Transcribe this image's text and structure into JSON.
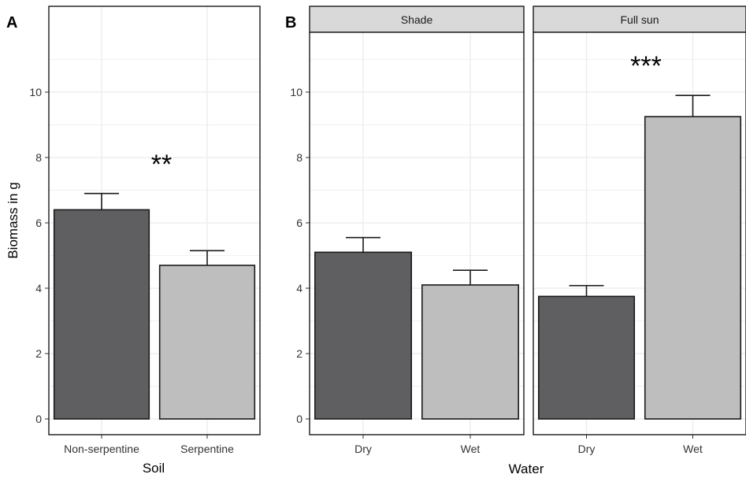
{
  "colors": {
    "dark_bar": "#5f5f61",
    "light_bar": "#bebebe",
    "strip_bg": "#d9d9d9",
    "grid": "#ebebeb"
  },
  "chart_data": [
    {
      "type": "bar",
      "panel_label": "A",
      "xlabel": "Soil",
      "ylabel": "Biomass in g",
      "ylim": [
        0,
        11.8
      ],
      "yticks": [
        0,
        2,
        4,
        6,
        8,
        10
      ],
      "categories": [
        "Non-serpentine",
        "Serpentine"
      ],
      "values": [
        6.4,
        4.7
      ],
      "error_upper": [
        6.9,
        5.15
      ],
      "significance": "**",
      "grid": true
    },
    {
      "type": "bar",
      "panel_label": "B",
      "xlabel": "Water",
      "ylim": [
        0,
        11.8
      ],
      "yticks": [
        0,
        2,
        4,
        6,
        8,
        10
      ],
      "facets": [
        {
          "strip": "Shade",
          "categories": [
            "Dry",
            "Wet"
          ],
          "values": [
            5.1,
            4.1
          ],
          "error_upper": [
            5.55,
            4.55
          ],
          "significance": ""
        },
        {
          "strip": "Full sun",
          "categories": [
            "Dry",
            "Wet"
          ],
          "values": [
            3.75,
            9.25
          ],
          "error_upper": [
            4.08,
            9.9
          ],
          "significance": "***"
        }
      ],
      "grid": true
    }
  ]
}
